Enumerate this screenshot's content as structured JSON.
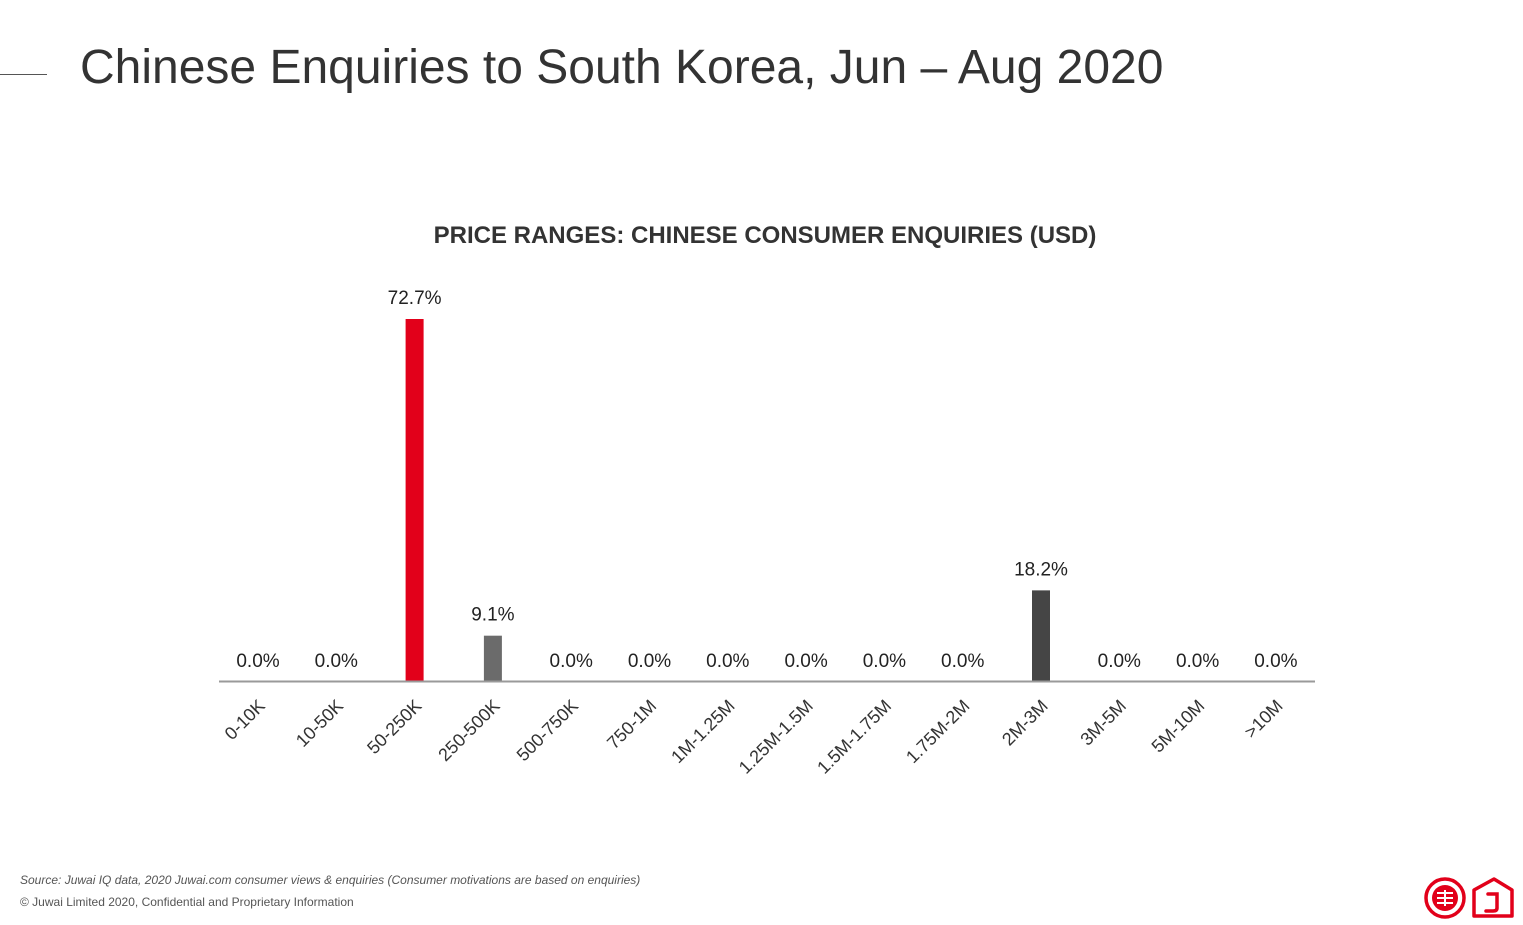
{
  "page": {
    "title": "Chinese Enquiries to South Korea, Jun – Aug 2020"
  },
  "footer": {
    "source": "Source: Juwai IQ data, 2020 Juwai.com consumer views & enquiries (Consumer motivations are based on enquiries)",
    "copyright": "© Juwai Limited 2020, Confidential and Proprietary Information"
  },
  "colors": {
    "highlight_bar": "#e2001a",
    "dark_bar": "#454545",
    "mid_bar": "#6b6b6b",
    "axis": "#9a9a9a",
    "brand_red": "#e2001a"
  },
  "logos": [
    "juwai-seal-icon",
    "juwai-house-icon"
  ],
  "chart_data": {
    "type": "bar",
    "title": "PRICE RANGES: CHINESE CONSUMER ENQUIRIES (USD)",
    "xlabel": "",
    "ylabel": "",
    "categories": [
      "0-10K",
      "10-50K",
      "50-250K",
      "250-500K",
      "500-750K",
      "750-1M",
      "1M-1.25M",
      "1.25M-1.5M",
      "1.5M-1.75M",
      "1.75M-2M",
      "2M-3M",
      "3M-5M",
      "5M-10M",
      ">10M"
    ],
    "values": [
      0.0,
      0.0,
      72.7,
      9.1,
      0.0,
      0.0,
      0.0,
      0.0,
      0.0,
      0.0,
      18.2,
      0.0,
      0.0,
      0.0
    ],
    "data_labels": [
      "0.0%",
      "0.0%",
      "72.7%",
      "9.1%",
      "0.0%",
      "0.0%",
      "0.0%",
      "0.0%",
      "0.0%",
      "0.0%",
      "18.2%",
      "0.0%",
      "0.0%",
      "0.0%"
    ],
    "bar_colors": [
      "#454545",
      "#454545",
      "#e2001a",
      "#6b6b6b",
      "#454545",
      "#454545",
      "#454545",
      "#454545",
      "#454545",
      "#454545",
      "#454545",
      "#454545",
      "#454545",
      "#454545"
    ],
    "ylim": [
      0,
      80
    ],
    "grid": false,
    "legend": "none"
  }
}
